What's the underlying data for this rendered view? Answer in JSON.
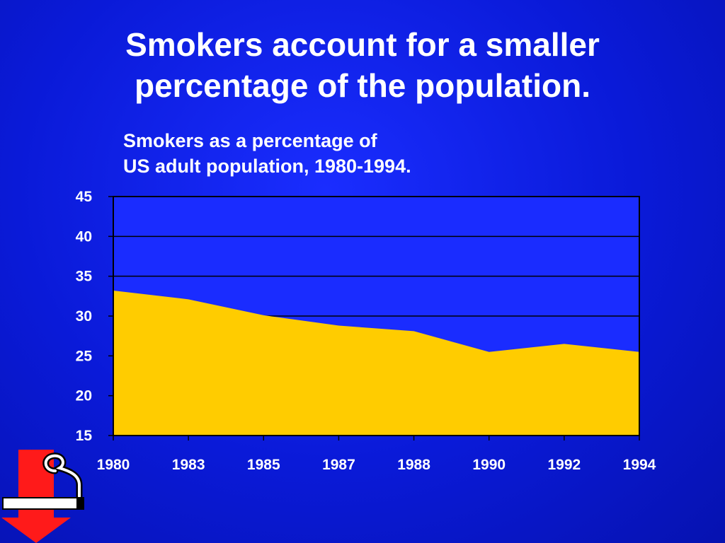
{
  "slide": {
    "title_line1": "Smokers account for a smaller",
    "title_line2": "percentage of the population.",
    "subtitle_line1": "Smokers as a percentage of",
    "subtitle_line2": "US adult population, 1980-1994."
  },
  "colors": {
    "background": "#0a1ad8",
    "plot_area": "#1a2cff",
    "area_fill": "#ffcc00",
    "gridline": "#000000",
    "logo_arrow": "#ff1a1a"
  },
  "logo": {
    "icon": "no-smoking-decline-arrow-icon"
  },
  "chart_data": {
    "type": "area",
    "title": "Smokers as a percentage of US adult population, 1980-1994.",
    "xlabel": "",
    "ylabel": "",
    "categories": [
      "1980",
      "1983",
      "1985",
      "1987",
      "1988",
      "1990",
      "1992",
      "1994"
    ],
    "series": [
      {
        "name": "",
        "values": [
          33.2,
          32.1,
          30.1,
          28.8,
          28.1,
          25.5,
          26.5,
          25.5
        ]
      }
    ],
    "ylim": [
      15,
      45
    ],
    "yticks": [
      15,
      20,
      25,
      30,
      35,
      40,
      45
    ],
    "grid": true,
    "legend": "none"
  }
}
